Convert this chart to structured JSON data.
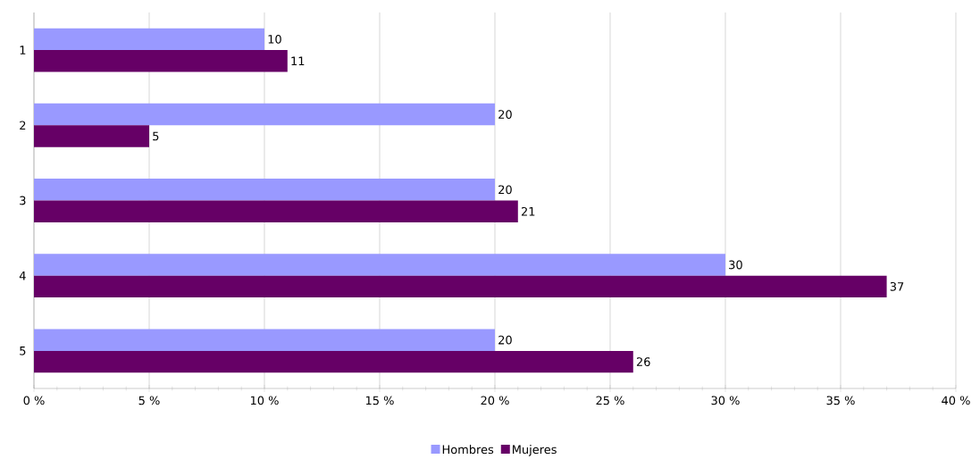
{
  "chart_data": {
    "type": "bar",
    "orientation": "horizontal",
    "categories": [
      "1",
      "2",
      "3",
      "4",
      "5"
    ],
    "series": [
      {
        "name": "Hombres",
        "color": "#9999ff",
        "values": [
          10,
          20,
          20,
          30,
          20
        ]
      },
      {
        "name": "Mujeres",
        "color": "#660066",
        "values": [
          11,
          5,
          21,
          37,
          26
        ]
      }
    ],
    "xlim": [
      0,
      40
    ],
    "xticks": [
      {
        "value": 0,
        "label": "0 %"
      },
      {
        "value": 5,
        "label": "5 %"
      },
      {
        "value": 10,
        "label": "10 %"
      },
      {
        "value": 15,
        "label": "15 %"
      },
      {
        "value": 20,
        "label": "20 %"
      },
      {
        "value": 25,
        "label": "25 %"
      },
      {
        "value": 30,
        "label": "30 %"
      },
      {
        "value": 35,
        "label": "35 %"
      },
      {
        "value": 40,
        "label": "40 %"
      }
    ],
    "data_labels": true,
    "grid": "x",
    "legend": "bottom"
  }
}
